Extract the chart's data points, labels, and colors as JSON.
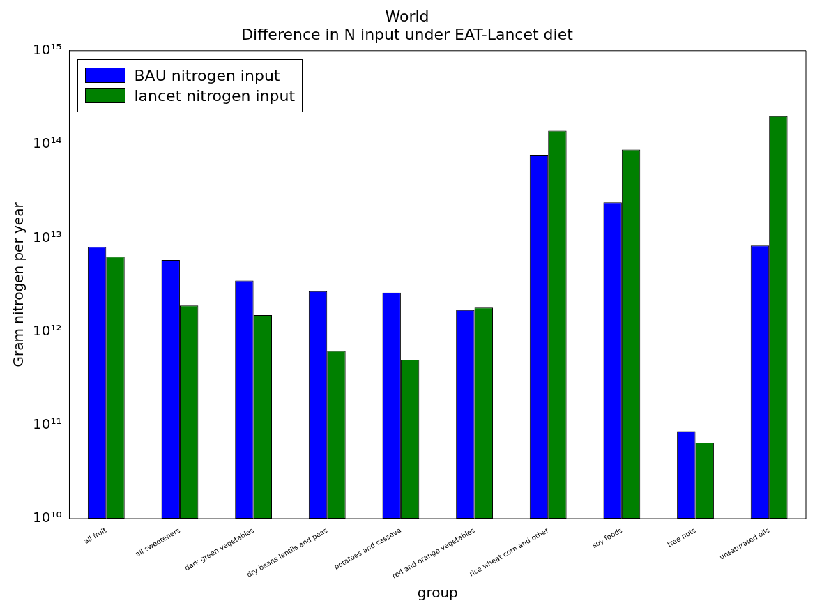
{
  "chart_data": {
    "type": "bar",
    "title": "World",
    "subtitle": "Difference in N input under EAT-Lancet diet",
    "xlabel": "group",
    "ylabel": "Gram nitrogen per year",
    "categories": [
      "all fruit",
      "all sweeteners",
      "dark green vegetables",
      "dry beans lentils and peas",
      "potatoes and cassava",
      "red and orange vegetables",
      "rice wheat corn and other",
      "soy foods",
      "tree nuts",
      "unsaturated oils"
    ],
    "series": [
      {
        "name": "BAU nitrogen input",
        "color": "#0000ff",
        "values": [
          8000000000000.0,
          5800000000000.0,
          3500000000000.0,
          2700000000000.0,
          2600000000000.0,
          1700000000000.0,
          76000000000000.0,
          24000000000000.0,
          86000000000.0,
          8300000000000.0
        ]
      },
      {
        "name": "lancet nitrogen input",
        "color": "#008000",
        "values": [
          6300000000000.0,
          1900000000000.0,
          1500000000000.0,
          620000000000.0,
          500000000000.0,
          1800000000000.0,
          140000000000000.0,
          88000000000000.0,
          65000000000.0,
          200000000000000.0
        ]
      }
    ],
    "log": "y",
    "ylim": [
      10000000000.0,
      1000000000000000.0
    ],
    "yticks": [
      {
        "value": 10000000000.0,
        "label": "10¹⁰"
      },
      {
        "value": 100000000000.0,
        "label": "10¹¹"
      },
      {
        "value": 1000000000000.0,
        "label": "10¹²"
      },
      {
        "value": 10000000000000.0,
        "label": "10¹³"
      },
      {
        "value": 100000000000000.0,
        "label": "10¹⁴"
      },
      {
        "value": 1000000000000000.0,
        "label": "10¹⁵"
      }
    ],
    "grid": false,
    "legend": "top left"
  }
}
